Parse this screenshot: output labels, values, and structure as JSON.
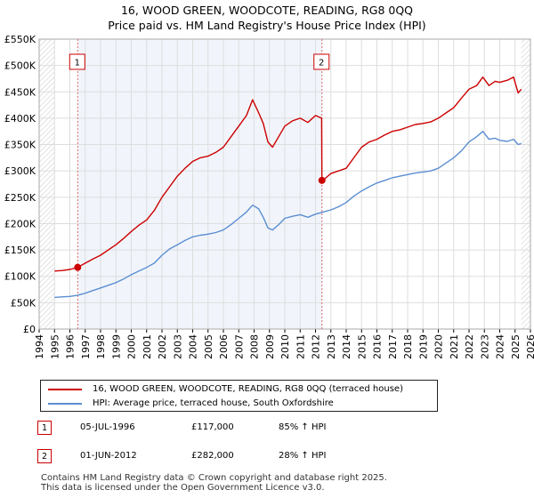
{
  "chart_data": {
    "type": "line",
    "title": "16, WOOD GREEN, WOODCOTE, READING, RG8 0QQ",
    "subtitle": "Price paid vs. HM Land Registry's House Price Index (HPI)",
    "xlim": [
      1994,
      2026
    ],
    "ylim": [
      0,
      550000
    ],
    "x_ticks": [
      "1994",
      "1995",
      "1996",
      "1997",
      "1998",
      "1999",
      "2000",
      "2001",
      "2002",
      "2003",
      "2004",
      "2005",
      "2006",
      "2007",
      "2008",
      "2009",
      "2010",
      "2011",
      "2012",
      "2013",
      "2014",
      "2015",
      "2016",
      "2017",
      "2018",
      "2019",
      "2020",
      "2021",
      "2022",
      "2023",
      "2024",
      "2025",
      "2026"
    ],
    "y_ticks": [
      {
        "value": 0,
        "label": "£0"
      },
      {
        "value": 50000,
        "label": "£50K"
      },
      {
        "value": 100000,
        "label": "£100K"
      },
      {
        "value": 150000,
        "label": "£150K"
      },
      {
        "value": 200000,
        "label": "£200K"
      },
      {
        "value": 250000,
        "label": "£250K"
      },
      {
        "value": 300000,
        "label": "£300K"
      },
      {
        "value": 350000,
        "label": "£350K"
      },
      {
        "value": 400000,
        "label": "£400K"
      },
      {
        "value": 450000,
        "label": "£450K"
      },
      {
        "value": 500000,
        "label": "£500K"
      },
      {
        "value": 550000,
        "label": "£550K"
      }
    ],
    "grid": true,
    "series": [
      {
        "name": "16, WOOD GREEN, WOODCOTE, READING, RG8 0QQ (terraced house)",
        "color": "#cc0000",
        "x": [
          1995.0,
          1995.5,
          1996.0,
          1996.51,
          1997.0,
          1997.5,
          1998.0,
          1998.5,
          1999.0,
          1999.5,
          2000.0,
          2000.5,
          2001.0,
          2001.5,
          2002.0,
          2002.5,
          2003.0,
          2003.5,
          2004.0,
          2004.5,
          2005.0,
          2005.5,
          2006.0,
          2006.5,
          2007.0,
          2007.5,
          2007.9,
          2008.3,
          2008.6,
          2008.9,
          2009.2,
          2009.6,
          2010.0,
          2010.5,
          2011.0,
          2011.5,
          2012.0,
          2012.4,
          2012.42,
          2012.6,
          2013.0,
          2013.5,
          2014.0,
          2014.5,
          2015.0,
          2015.5,
          2016.0,
          2016.5,
          2017.0,
          2017.5,
          2018.0,
          2018.5,
          2019.0,
          2019.5,
          2020.0,
          2020.5,
          2021.0,
          2021.5,
          2022.0,
          2022.5,
          2022.9,
          2023.3,
          2023.7,
          2024.0,
          2024.5,
          2024.9,
          2025.2,
          2025.4
        ],
        "values": [
          110000,
          111000,
          113000,
          117000,
          125000,
          133000,
          140000,
          150000,
          160000,
          172000,
          185000,
          197000,
          207000,
          225000,
          250000,
          270000,
          290000,
          305000,
          318000,
          325000,
          328000,
          335000,
          345000,
          365000,
          385000,
          405000,
          435000,
          410000,
          390000,
          355000,
          345000,
          365000,
          385000,
          395000,
          400000,
          392000,
          405000,
          400000,
          282000,
          285000,
          295000,
          300000,
          305000,
          325000,
          345000,
          355000,
          360000,
          368000,
          375000,
          378000,
          383000,
          388000,
          390000,
          393000,
          400000,
          410000,
          420000,
          438000,
          455000,
          462000,
          478000,
          462000,
          470000,
          468000,
          472000,
          478000,
          448000,
          455000
        ]
      },
      {
        "name": "HPI: Average price, terraced house, South Oxfordshire",
        "color": "#5b8ed2",
        "x": [
          1995.0,
          1995.5,
          1996.0,
          1996.5,
          1997.0,
          1997.5,
          1998.0,
          1998.5,
          1999.0,
          1999.5,
          2000.0,
          2000.5,
          2001.0,
          2001.5,
          2002.0,
          2002.5,
          2003.0,
          2003.5,
          2004.0,
          2004.5,
          2005.0,
          2005.5,
          2006.0,
          2006.5,
          2007.0,
          2007.5,
          2007.9,
          2008.3,
          2008.6,
          2008.9,
          2009.2,
          2009.6,
          2010.0,
          2010.5,
          2011.0,
          2011.5,
          2012.0,
          2012.5,
          2013.0,
          2013.5,
          2014.0,
          2014.5,
          2015.0,
          2015.5,
          2016.0,
          2016.5,
          2017.0,
          2017.5,
          2018.0,
          2018.5,
          2019.0,
          2019.5,
          2020.0,
          2020.5,
          2021.0,
          2021.5,
          2022.0,
          2022.5,
          2022.9,
          2023.3,
          2023.7,
          2024.0,
          2024.5,
          2024.9,
          2025.2,
          2025.4
        ],
        "values": [
          60000,
          61000,
          62000,
          64000,
          68000,
          73000,
          78000,
          83000,
          88000,
          95000,
          103000,
          110000,
          117000,
          125000,
          140000,
          152000,
          160000,
          168000,
          175000,
          178000,
          180000,
          183000,
          188000,
          198000,
          210000,
          222000,
          235000,
          228000,
          212000,
          192000,
          188000,
          198000,
          210000,
          214000,
          217000,
          212000,
          218000,
          222000,
          226000,
          232000,
          240000,
          252000,
          262000,
          270000,
          277000,
          282000,
          287000,
          290000,
          293000,
          296000,
          298000,
          300000,
          305000,
          315000,
          325000,
          338000,
          355000,
          365000,
          375000,
          360000,
          362000,
          358000,
          356000,
          360000,
          350000,
          352000
        ]
      }
    ],
    "annotations": [
      {
        "label": "1",
        "x": 1996.51,
        "y": 117000
      },
      {
        "label": "2",
        "x": 2012.42,
        "y": 282000
      }
    ],
    "hatched_before": 1995.0,
    "hatched_after": 2025.4
  },
  "legend": {
    "property_label": "16, WOOD GREEN, WOODCOTE, READING, RG8 0QQ (terraced house)",
    "hpi_label": "HPI: Average price, terraced house, South Oxfordshire",
    "property_color": "#cc0000",
    "hpi_color": "#5b8ed2"
  },
  "sales": [
    {
      "number": "1",
      "date": "05-JUL-1996",
      "price": "£117,000",
      "hpi_change": "85% ↑ HPI"
    },
    {
      "number": "2",
      "date": "01-JUN-2012",
      "price": "£282,000",
      "hpi_change": "28% ↑ HPI"
    }
  ],
  "footer": {
    "line1": "Contains HM Land Registry data © Crown copyright and database right 2025.",
    "line2": "This data is licensed under the Open Government Licence v3.0."
  }
}
